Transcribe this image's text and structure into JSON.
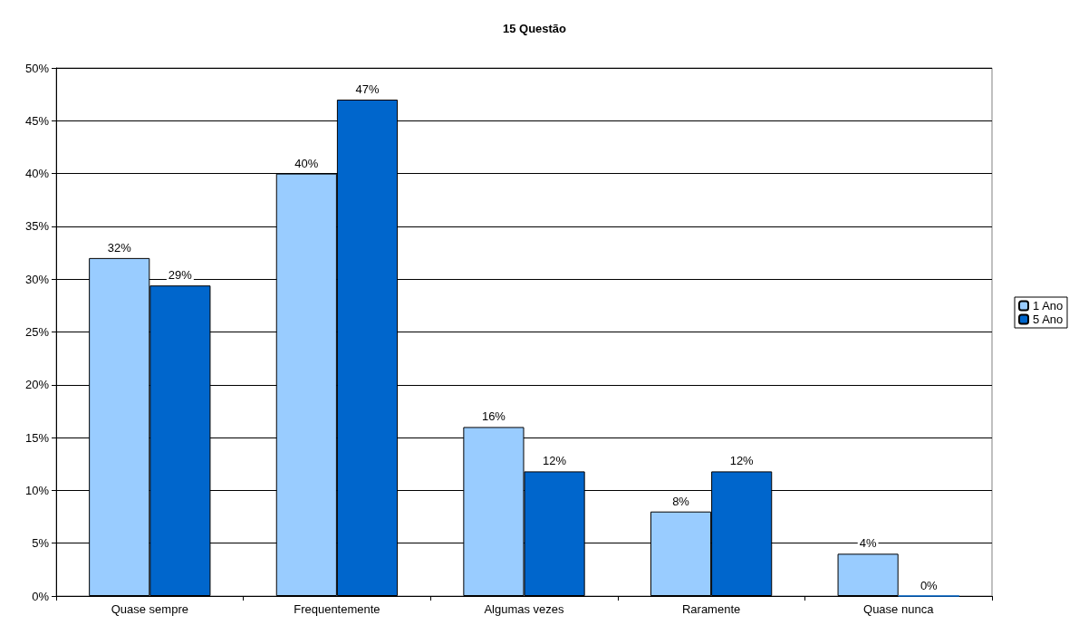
{
  "chart_data": {
    "type": "bar",
    "title": "15 Questão",
    "categories": [
      "Quase sempre",
      "Frequentemente",
      "Algumas vezes",
      "Raramente",
      "Quase nunca"
    ],
    "series": [
      {
        "name": "1 Ano",
        "color": "#99ccff",
        "values": [
          32,
          40,
          16,
          8,
          4
        ],
        "value_labels": [
          "32%",
          "40%",
          "16%",
          "8%",
          "4%"
        ]
      },
      {
        "name": "5 Ano",
        "color": "#0066cc",
        "values": [
          29.4,
          47,
          11.8,
          11.8,
          0
        ],
        "value_labels": [
          "29%",
          "47%",
          "12%",
          "12%",
          "0%"
        ]
      }
    ],
    "ylim": [
      0,
      50
    ],
    "yticks": [
      {
        "value": 0,
        "label": "0%"
      },
      {
        "value": 5,
        "label": "5%"
      },
      {
        "value": 10,
        "label": "10%"
      },
      {
        "value": 15,
        "label": "15%"
      },
      {
        "value": 20,
        "label": "20%"
      },
      {
        "value": 25,
        "label": "25%"
      },
      {
        "value": 30,
        "label": "30%"
      },
      {
        "value": 35,
        "label": "35%"
      },
      {
        "value": 40,
        "label": "40%"
      },
      {
        "value": 45,
        "label": "45%"
      },
      {
        "value": 50,
        "label": "50%"
      }
    ],
    "grid": "y",
    "legend": "right"
  }
}
